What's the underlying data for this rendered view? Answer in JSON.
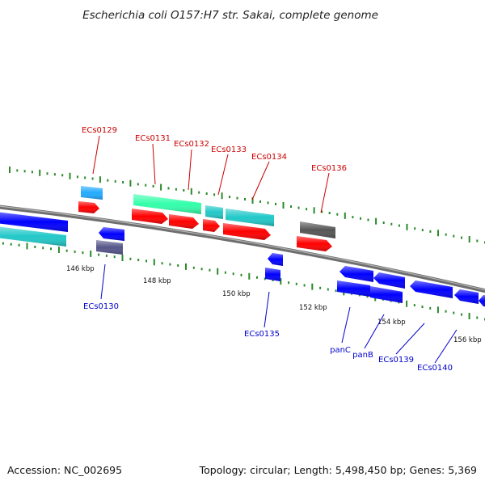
{
  "title": "Escherichia coli O157:H7 str. Sakai, complete genome",
  "footer": {
    "accession": "Accession: NC_002695",
    "summary": "Topology: circular; Length: 5,498,450 bp; Genes: 5,369"
  },
  "colors": {
    "backbone": "#808080",
    "tick": "#2a8a2a",
    "label_forward": "#cc0000",
    "label_reverse": "#0000cc",
    "cds_red": "#ff0000",
    "cds_blue": "#0000ff",
    "cds_cyan": "#22c8c8",
    "cds_sky": "#22aaff",
    "cds_green": "#33ffaa",
    "cds_gray": "#555555",
    "cds_slate": "#55558a"
  },
  "scale_labels": [
    "146 kbp",
    "148 kbp",
    "150 kbp",
    "152 kbp",
    "154 kbp",
    "156 kbp"
  ],
  "gene_labels_forward": [
    "ECs0129",
    "ECs0131",
    "ECs0132",
    "ECs0133",
    "ECs0134",
    "ECs0136"
  ],
  "gene_labels_reverse": [
    "ECs0130",
    "ECs0135",
    "panC",
    "panB",
    "ECs0139",
    "ECs0140"
  ]
}
